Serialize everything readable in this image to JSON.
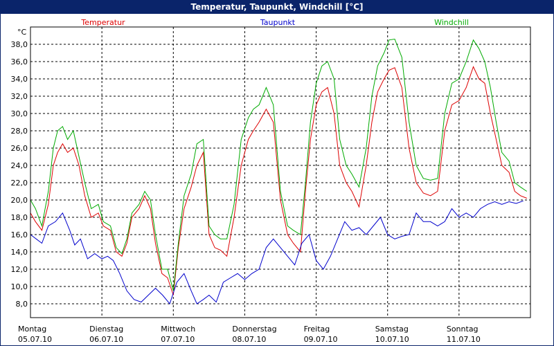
{
  "title": "Temperatur, Taupunkt, Windchill [°C]",
  "chart_data": {
    "type": "line",
    "title": "Temperatur, Taupunkt, Windchill [°C]",
    "ylabel": "°C",
    "ylim": [
      6.4,
      40
    ],
    "yticks": [
      8,
      10,
      12,
      14,
      16,
      18,
      20,
      22,
      24,
      26,
      28,
      30,
      32,
      34,
      36,
      38
    ],
    "ytick_labels": [
      "8,0",
      "10,0",
      "12,0",
      "14,0",
      "16,0",
      "18,0",
      "20,0",
      "22,0",
      "24,0",
      "26,0",
      "28,0",
      "30,0",
      "32,0",
      "34,0",
      "36,0",
      "38,0"
    ],
    "xlim": [
      0,
      7
    ],
    "x_day_labels": [
      {
        "day": "Montag",
        "date": "05.07.10"
      },
      {
        "day": "Dienstag",
        "date": "06.07.10"
      },
      {
        "day": "Mittwoch",
        "date": "07.07.10"
      },
      {
        "day": "Donnerstag",
        "date": "08.07.10"
      },
      {
        "day": "Freitag",
        "date": "09.07.10"
      },
      {
        "day": "Samstag",
        "date": "10.07.10"
      },
      {
        "day": "Sonntag",
        "date": "11.07.10"
      }
    ],
    "grid": true,
    "legend_position": "top",
    "series": [
      {
        "name": "Temperatur",
        "color": "#dd0000",
        "x": [
          0,
          0.07,
          0.16,
          0.25,
          0.32,
          0.38,
          0.45,
          0.52,
          0.6,
          0.68,
          0.76,
          0.85,
          0.95,
          1.02,
          1.12,
          1.2,
          1.28,
          1.35,
          1.42,
          1.52,
          1.6,
          1.68,
          1.75,
          1.84,
          1.92,
          2.0,
          2.07,
          2.15,
          2.25,
          2.33,
          2.42,
          2.5,
          2.58,
          2.66,
          2.75,
          2.85,
          2.95,
          3.05,
          3.12,
          3.2,
          3.3,
          3.4,
          3.5,
          3.6,
          3.68,
          3.78,
          3.85,
          3.92,
          4.0,
          4.08,
          4.16,
          4.25,
          4.33,
          4.42,
          4.5,
          4.6,
          4.7,
          4.78,
          4.86,
          4.95,
          5.02,
          5.1,
          5.2,
          5.3,
          5.4,
          5.5,
          5.6,
          5.7,
          5.8,
          5.9,
          6.0,
          6.1,
          6.2,
          6.28,
          6.36,
          6.44,
          6.52,
          6.6,
          6.7,
          6.78,
          6.86,
          6.95
        ],
        "y": [
          18.5,
          17.5,
          16.5,
          19.5,
          24.0,
          25.5,
          26.5,
          25.5,
          26.0,
          24.0,
          20.5,
          18.0,
          18.5,
          17.0,
          16.5,
          14.0,
          13.5,
          15.0,
          18.0,
          19.0,
          20.5,
          19.0,
          15.0,
          11.5,
          11.0,
          9.0,
          14.5,
          19.0,
          21.5,
          24.0,
          25.5,
          16.0,
          14.5,
          14.2,
          13.5,
          18.0,
          24.0,
          27.0,
          28.0,
          29.0,
          30.5,
          29.0,
          20.0,
          16.0,
          15.0,
          14.0,
          21.0,
          27.0,
          31.0,
          32.5,
          33.0,
          30.0,
          24.0,
          22.0,
          21.0,
          19.2,
          24.0,
          29.0,
          32.5,
          34.0,
          35.0,
          35.3,
          33.0,
          26.0,
          22.0,
          20.8,
          20.5,
          21.0,
          28.0,
          31.0,
          31.5,
          33.0,
          35.4,
          34.0,
          33.5,
          30.0,
          27.0,
          24.0,
          23.2,
          21.0,
          20.5,
          20.2
        ]
      },
      {
        "name": "Taupunkt",
        "color": "#0000cc",
        "x": [
          0,
          0.08,
          0.16,
          0.25,
          0.35,
          0.45,
          0.55,
          0.62,
          0.7,
          0.8,
          0.9,
          1.0,
          1.08,
          1.16,
          1.25,
          1.35,
          1.45,
          1.55,
          1.65,
          1.75,
          1.85,
          1.95,
          2.05,
          2.15,
          2.25,
          2.33,
          2.42,
          2.5,
          2.6,
          2.7,
          2.8,
          2.9,
          3.0,
          3.1,
          3.2,
          3.3,
          3.4,
          3.5,
          3.6,
          3.7,
          3.8,
          3.9,
          4.0,
          4.1,
          4.2,
          4.3,
          4.4,
          4.5,
          4.6,
          4.7,
          4.8,
          4.9,
          5.0,
          5.1,
          5.2,
          5.3,
          5.4,
          5.5,
          5.6,
          5.7,
          5.8,
          5.9,
          6.0,
          6.1,
          6.2,
          6.3,
          6.4,
          6.5,
          6.6,
          6.7,
          6.8,
          6.9
        ],
        "y": [
          16.0,
          15.5,
          15.0,
          17.0,
          17.5,
          18.5,
          16.5,
          14.8,
          15.5,
          13.2,
          13.8,
          13.2,
          13.5,
          13.0,
          11.5,
          9.5,
          8.5,
          8.2,
          9.0,
          9.8,
          9.0,
          8.0,
          10.5,
          11.5,
          9.5,
          8.0,
          8.5,
          9.0,
          8.2,
          10.5,
          11.0,
          11.5,
          10.8,
          11.5,
          12.0,
          14.5,
          15.5,
          14.5,
          13.5,
          12.5,
          15.0,
          16.0,
          13.0,
          12.0,
          13.5,
          15.5,
          17.5,
          16.5,
          16.8,
          16.0,
          17.0,
          18.0,
          16.0,
          15.5,
          15.8,
          16.0,
          18.5,
          17.5,
          17.5,
          17.0,
          17.5,
          19.0,
          18.0,
          18.5,
          18.0,
          19.0,
          19.5,
          19.8,
          19.5,
          19.8,
          19.6,
          19.9
        ]
      },
      {
        "name": "Windchill",
        "color": "#00aa00",
        "x": [
          0,
          0.07,
          0.16,
          0.25,
          0.32,
          0.38,
          0.45,
          0.52,
          0.6,
          0.68,
          0.76,
          0.85,
          0.95,
          1.02,
          1.12,
          1.2,
          1.28,
          1.35,
          1.42,
          1.52,
          1.6,
          1.68,
          1.75,
          1.84,
          1.92,
          2.0,
          2.07,
          2.15,
          2.25,
          2.33,
          2.42,
          2.5,
          2.58,
          2.66,
          2.75,
          2.85,
          2.95,
          3.05,
          3.12,
          3.2,
          3.3,
          3.4,
          3.5,
          3.6,
          3.68,
          3.78,
          3.85,
          3.92,
          4.0,
          4.08,
          4.16,
          4.25,
          4.33,
          4.42,
          4.5,
          4.6,
          4.7,
          4.78,
          4.86,
          4.95,
          5.02,
          5.1,
          5.2,
          5.3,
          5.4,
          5.5,
          5.6,
          5.7,
          5.8,
          5.9,
          6.0,
          6.1,
          6.2,
          6.28,
          6.36,
          6.44,
          6.52,
          6.6,
          6.7,
          6.78,
          6.86,
          6.95
        ],
        "y": [
          20.0,
          19.0,
          17.0,
          21.0,
          26.0,
          28.0,
          28.5,
          27.0,
          28.0,
          25.0,
          22.0,
          19.0,
          19.5,
          17.5,
          17.0,
          14.5,
          13.8,
          15.5,
          18.5,
          19.5,
          21.0,
          20.0,
          16.0,
          12.0,
          12.0,
          9.5,
          15.0,
          20.5,
          23.0,
          26.5,
          27.0,
          17.0,
          16.0,
          15.5,
          15.5,
          19.5,
          27.0,
          29.5,
          30.5,
          31.0,
          33.0,
          31.0,
          21.0,
          17.0,
          16.5,
          16.0,
          22.0,
          29.0,
          33.5,
          35.5,
          36.0,
          34.0,
          27.0,
          24.0,
          23.0,
          21.5,
          26.0,
          32.0,
          35.5,
          37.0,
          38.5,
          38.6,
          36.5,
          29.0,
          24.0,
          22.5,
          22.3,
          22.5,
          30.0,
          33.5,
          34.0,
          36.0,
          38.5,
          37.5,
          36.0,
          33.0,
          29.0,
          25.5,
          24.5,
          22.0,
          21.5,
          21.0
        ]
      }
    ]
  }
}
